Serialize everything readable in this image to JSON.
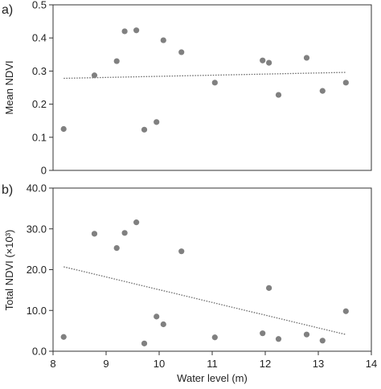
{
  "chart_data": [
    {
      "type": "scatter",
      "panel_label": "a)",
      "xlabel": "",
      "ylabel": "Mean NDVI",
      "xlim": [
        8,
        14
      ],
      "ylim": [
        0,
        0.5
      ],
      "yticks": [
        0,
        0.1,
        0.2,
        0.3,
        0.4,
        0.5
      ],
      "ytick_labels": [
        "0",
        "0.1",
        "0.2",
        "0.3",
        "0.4",
        "0.5"
      ],
      "points": [
        {
          "x": 8.2,
          "y": 0.125
        },
        {
          "x": 8.78,
          "y": 0.287
        },
        {
          "x": 9.2,
          "y": 0.33
        },
        {
          "x": 9.35,
          "y": 0.42
        },
        {
          "x": 9.57,
          "y": 0.423
        },
        {
          "x": 9.72,
          "y": 0.123
        },
        {
          "x": 9.95,
          "y": 0.146
        },
        {
          "x": 10.08,
          "y": 0.393
        },
        {
          "x": 10.42,
          "y": 0.357
        },
        {
          "x": 11.05,
          "y": 0.265
        },
        {
          "x": 11.95,
          "y": 0.332
        },
        {
          "x": 12.07,
          "y": 0.325
        },
        {
          "x": 12.25,
          "y": 0.228
        },
        {
          "x": 12.78,
          "y": 0.34
        },
        {
          "x": 13.08,
          "y": 0.24
        },
        {
          "x": 13.52,
          "y": 0.265
        }
      ],
      "trendline": {
        "x": [
          8.2,
          13.52
        ],
        "y": [
          0.278,
          0.296
        ]
      },
      "grid": false,
      "marker_color": "#808080",
      "trend_color": "#707070"
    },
    {
      "type": "scatter",
      "panel_label": "b)",
      "xlabel": "Water level (m)",
      "ylabel": "Total NDVI (×10³)",
      "xlim": [
        8,
        14
      ],
      "ylim": [
        0,
        40
      ],
      "xticks": [
        8,
        9,
        10,
        11,
        12,
        13,
        14
      ],
      "xtick_labels": [
        "8",
        "9",
        "10",
        "11",
        "12",
        "13",
        "14"
      ],
      "yticks": [
        0,
        10,
        20,
        30,
        40
      ],
      "ytick_labels": [
        "0.0",
        "10.0",
        "20.0",
        "30.0",
        "40.0"
      ],
      "points": [
        {
          "x": 8.2,
          "y": 3.5
        },
        {
          "x": 8.78,
          "y": 28.8
        },
        {
          "x": 9.2,
          "y": 25.3
        },
        {
          "x": 9.35,
          "y": 29.0
        },
        {
          "x": 9.57,
          "y": 31.6
        },
        {
          "x": 9.72,
          "y": 1.9
        },
        {
          "x": 9.95,
          "y": 8.5
        },
        {
          "x": 10.08,
          "y": 6.6
        },
        {
          "x": 10.42,
          "y": 24.5
        },
        {
          "x": 11.05,
          "y": 3.4
        },
        {
          "x": 11.95,
          "y": 4.4
        },
        {
          "x": 12.07,
          "y": 15.5
        },
        {
          "x": 12.25,
          "y": 3.0
        },
        {
          "x": 12.78,
          "y": 4.1
        },
        {
          "x": 13.08,
          "y": 2.6
        },
        {
          "x": 13.52,
          "y": 9.8
        }
      ],
      "trendline": {
        "x": [
          8.2,
          13.52
        ],
        "y": [
          20.7,
          4.1
        ]
      },
      "grid": false,
      "marker_color": "#808080",
      "trend_color": "#707070"
    }
  ]
}
